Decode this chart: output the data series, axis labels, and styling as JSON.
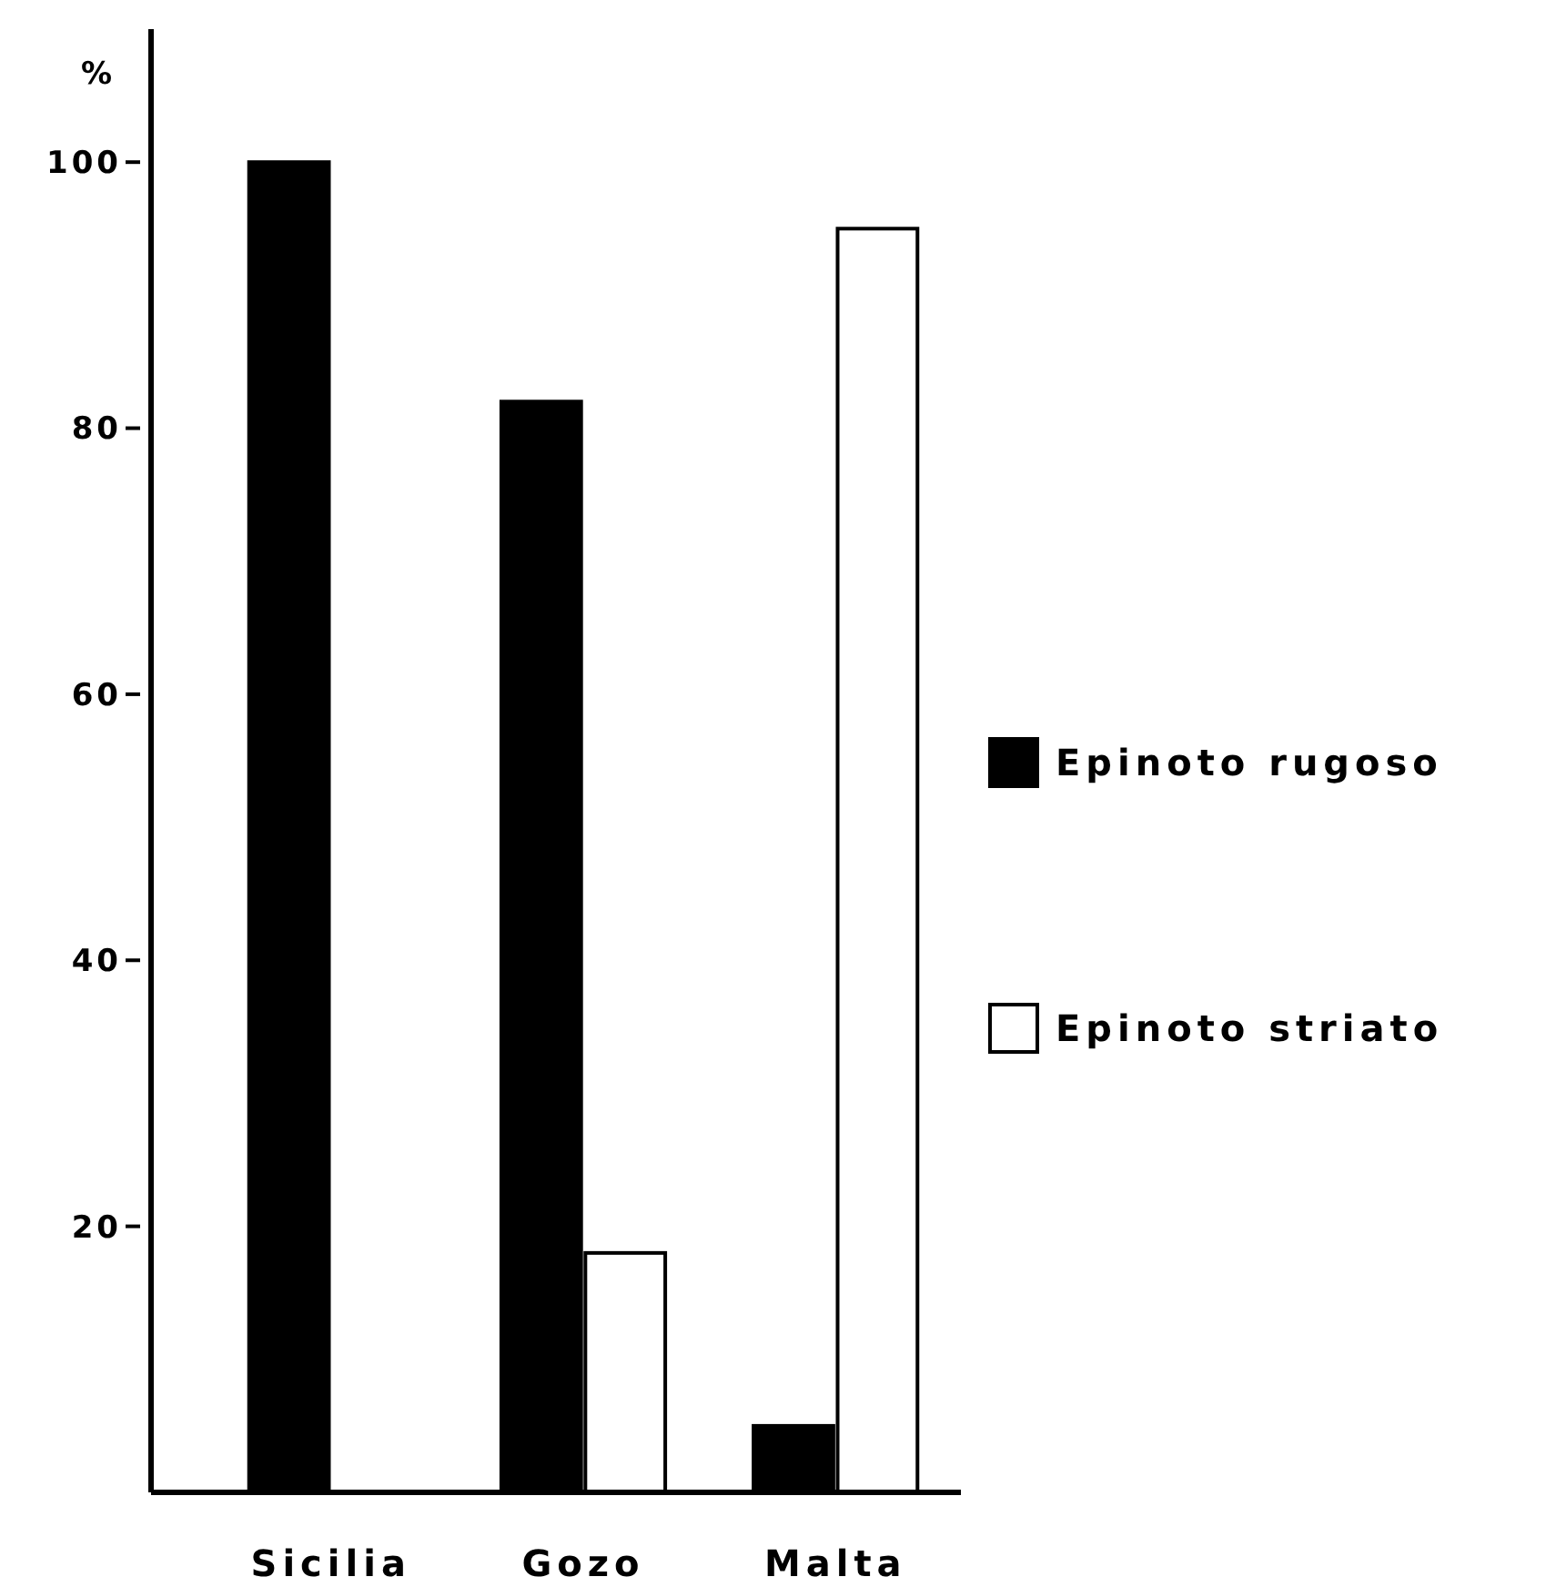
{
  "chart_data": {
    "type": "bar",
    "ylabel": "%",
    "categories": [
      "Sicilia",
      "Gozo",
      "Malta"
    ],
    "series": [
      {
        "name": "Epinoto rugoso",
        "color": "#000000",
        "values": [
          100,
          82,
          5
        ]
      },
      {
        "name": "Epinoto striato",
        "color": "#ffffff",
        "values": [
          null,
          18,
          95
        ]
      }
    ],
    "ylim": [
      0,
      110
    ],
    "yticks": [
      20,
      40,
      60,
      80,
      100
    ],
    "grid": false,
    "legend": "right"
  }
}
